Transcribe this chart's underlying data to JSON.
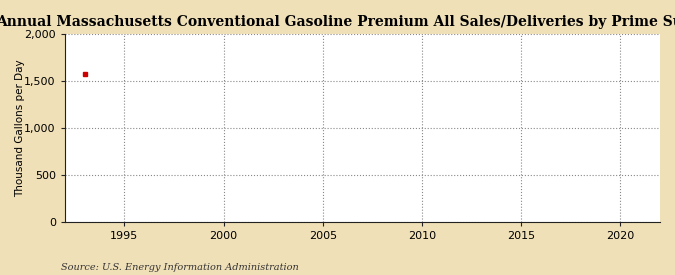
{
  "title": "Annual Massachusetts Conventional Gasoline Premium All Sales/Deliveries by Prime Supplier",
  "ylabel": "Thousand Gallons per Day",
  "source_text": "Source: U.S. Energy Information Administration",
  "fig_bg_color": "#f0e0b8",
  "plot_bg_color": "#ffffff",
  "data_x": [
    1993
  ],
  "data_y": [
    1572
  ],
  "data_color": "#cc0000",
  "xlim": [
    1992,
    2022
  ],
  "ylim": [
    0,
    2000
  ],
  "xticks": [
    1995,
    2000,
    2005,
    2010,
    2015,
    2020
  ],
  "yticks": [
    0,
    500,
    1000,
    1500,
    2000
  ],
  "ytick_labels": [
    "0",
    "500",
    "1,000",
    "1,500",
    "2,000"
  ],
  "title_fontsize": 10,
  "ylabel_fontsize": 7.5,
  "tick_fontsize": 8,
  "source_fontsize": 7,
  "grid_color": "#888888",
  "grid_linestyle": ":",
  "grid_linewidth": 0.8
}
